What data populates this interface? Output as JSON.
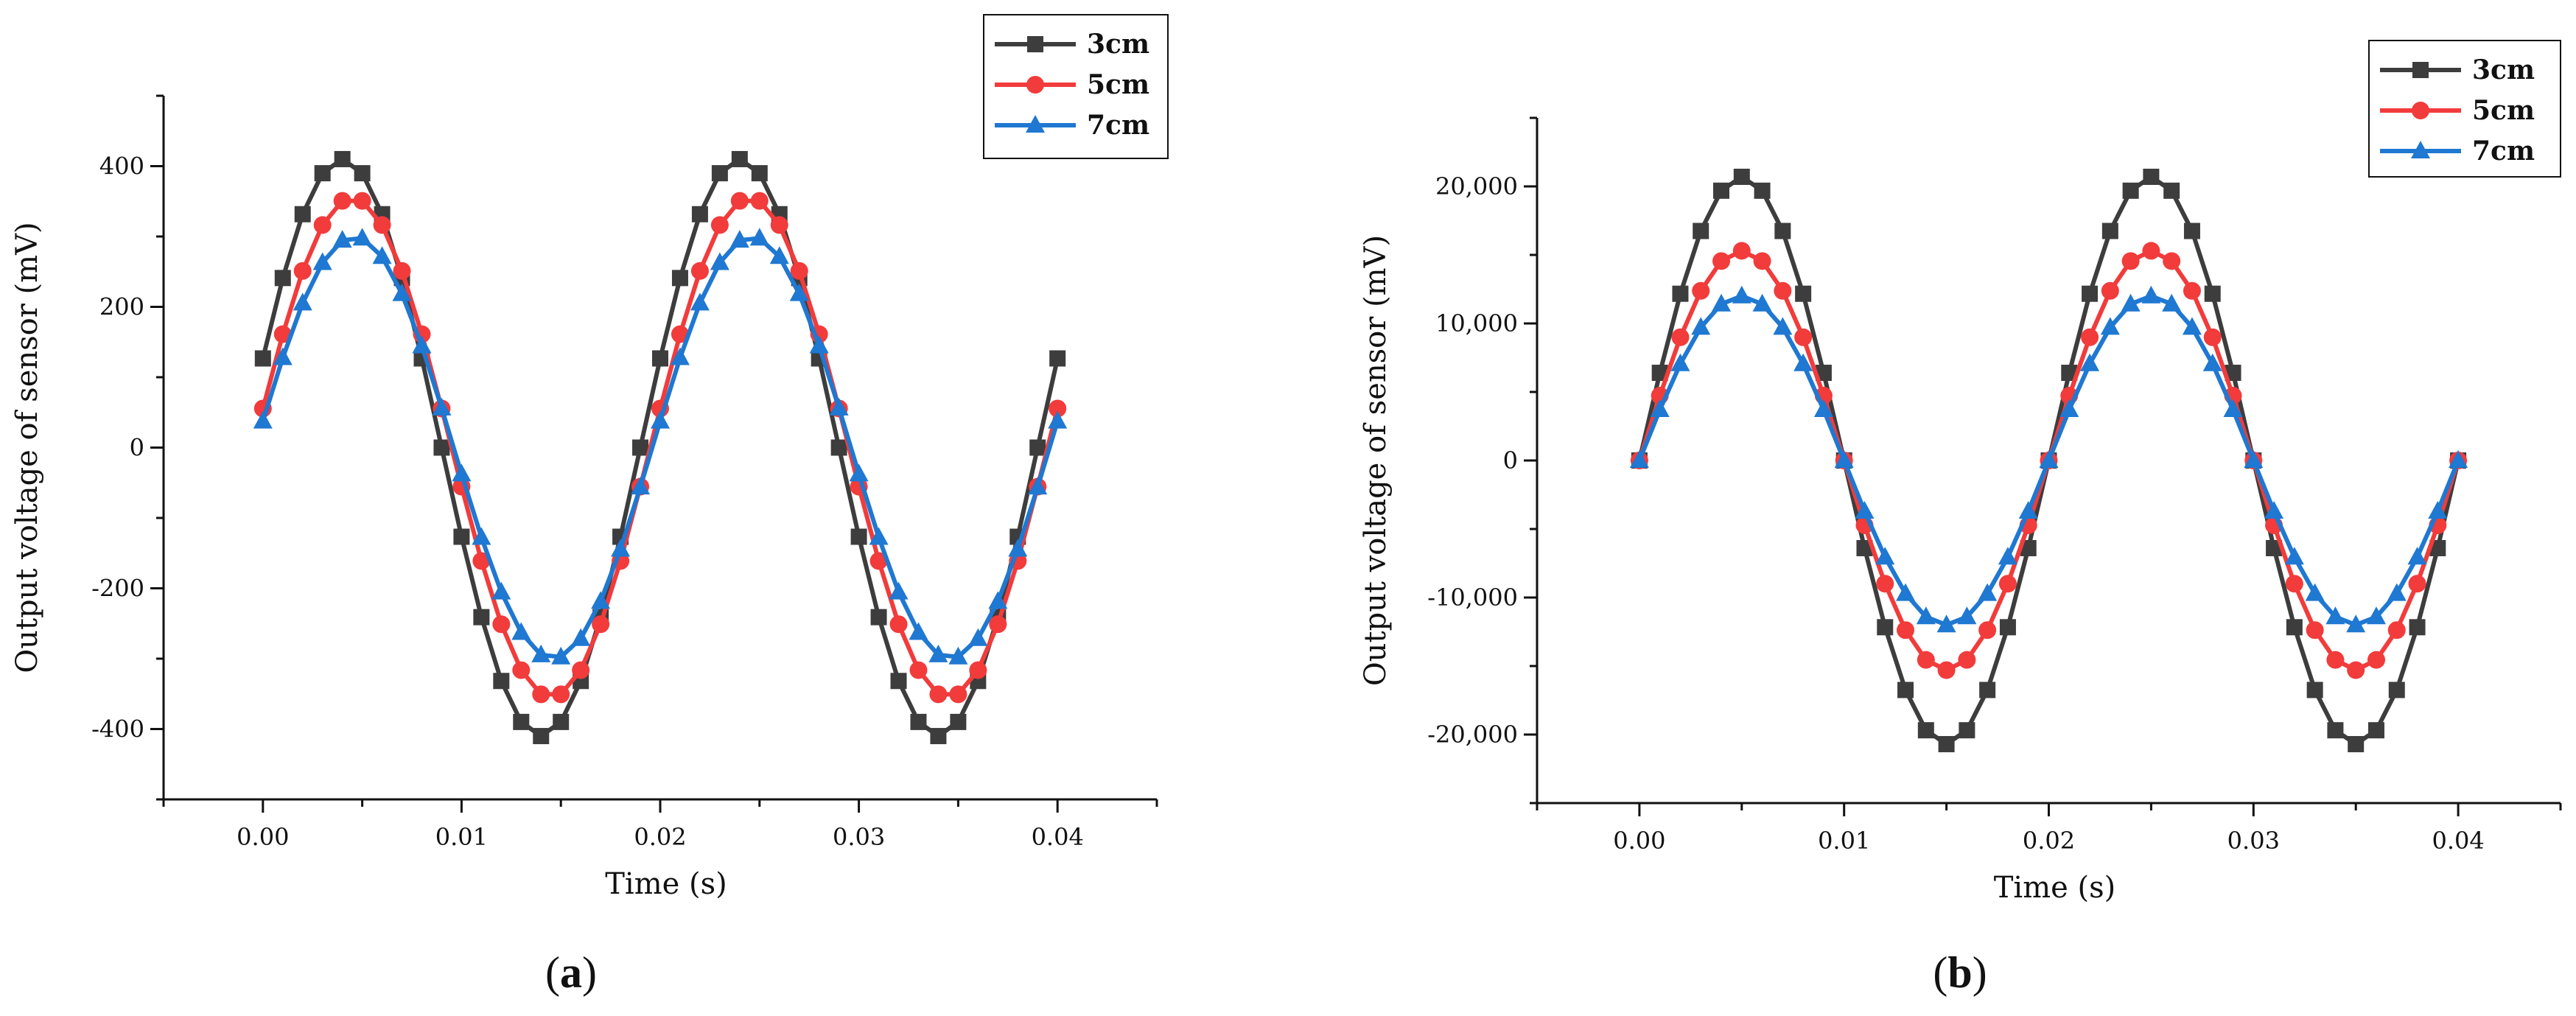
{
  "chart_data": [
    {
      "panel": "a",
      "type": "line",
      "title": "",
      "xlabel": "Time (s)",
      "ylabel": "Output voltage of sensor (mV)",
      "xlim": [
        -0.005,
        0.045
      ],
      "ylim": [
        -500,
        500
      ],
      "xticks": [
        0.0,
        0.01,
        0.02,
        0.03,
        0.04
      ],
      "xtick_labels": [
        "0.00",
        "0.01",
        "0.02",
        "0.03",
        "0.04"
      ],
      "yticks": [
        -400,
        -200,
        0,
        200,
        400
      ],
      "ytick_labels": [
        "-400",
        "-200",
        "0",
        "200",
        "400"
      ],
      "grid": false,
      "legend_position": "top-right",
      "series": [
        {
          "name": "3cm",
          "color": "#3d3d3d",
          "marker": "square",
          "amplitude": 410,
          "phase_time": 0.004,
          "period": 0.02,
          "x_start": 0.0,
          "x_end": 0.04,
          "x_step": 0.001
        },
        {
          "name": "5cm",
          "color": "#f23b3b",
          "marker": "circle",
          "amplitude": 355,
          "phase_time": 0.0045,
          "period": 0.02,
          "x_start": 0.0,
          "x_end": 0.04,
          "x_step": 0.001
        },
        {
          "name": "7cm",
          "color": "#1f78d1",
          "marker": "triangle",
          "amplitude": 300,
          "phase_time": 0.0046,
          "period": 0.02,
          "x_start": 0.0,
          "x_end": 0.04,
          "x_step": 0.001
        }
      ]
    },
    {
      "panel": "b",
      "type": "line",
      "title": "",
      "xlabel": "Time (s)",
      "ylabel": "Output voltage of sensor (mV)",
      "xlim": [
        -0.005,
        0.045
      ],
      "ylim": [
        -25000,
        25000
      ],
      "xticks": [
        0.0,
        0.01,
        0.02,
        0.03,
        0.04
      ],
      "xtick_labels": [
        "0.00",
        "0.01",
        "0.02",
        "0.03",
        "0.04"
      ],
      "yticks": [
        -20000,
        -10000,
        0,
        10000,
        20000
      ],
      "ytick_labels": [
        "-20,000",
        "-10,000",
        "0",
        "10,000",
        "20,000"
      ],
      "grid": false,
      "legend_position": "top-right",
      "series": [
        {
          "name": "3cm",
          "color": "#3d3d3d",
          "marker": "square",
          "amplitude": 20700,
          "phase_time": 0.005,
          "period": 0.02,
          "x_start": 0.0,
          "x_end": 0.04,
          "x_step": 0.001
        },
        {
          "name": "5cm",
          "color": "#f23b3b",
          "marker": "circle",
          "amplitude": 15300,
          "phase_time": 0.005,
          "period": 0.02,
          "x_start": 0.0,
          "x_end": 0.04,
          "x_step": 0.001
        },
        {
          "name": "7cm",
          "color": "#1f78d1",
          "marker": "triangle",
          "amplitude": 12000,
          "phase_time": 0.005,
          "period": 0.02,
          "x_start": 0.0,
          "x_end": 0.04,
          "x_step": 0.001
        }
      ]
    }
  ],
  "panels": {
    "a": {
      "paren_open": "(",
      "letter": "a",
      "paren_close": ")"
    },
    "b": {
      "paren_open": "(",
      "letter": "b",
      "paren_close": ")"
    }
  }
}
